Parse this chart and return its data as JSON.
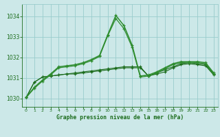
{
  "title": "Graphe pression niveau de la mer (hPa)",
  "background_color": "#cce8e8",
  "grid_color": "#99cccc",
  "line_color_dark": "#1a6b1a",
  "line_color_medium": "#2d8c2d",
  "xlim": [
    -0.5,
    23.5
  ],
  "ylim": [
    1029.6,
    1034.6
  ],
  "yticks": [
    1030,
    1031,
    1032,
    1033,
    1034
  ],
  "xticks": [
    0,
    1,
    2,
    3,
    4,
    5,
    6,
    7,
    8,
    9,
    10,
    11,
    12,
    13,
    14,
    15,
    16,
    17,
    18,
    19,
    20,
    21,
    22,
    23
  ],
  "series_sharp": [
    1030.05,
    1030.5,
    1030.85,
    1031.15,
    1031.5,
    1031.55,
    1031.6,
    1031.7,
    1031.85,
    1032.05,
    1033.05,
    1033.9,
    1033.4,
    1032.5,
    1031.05,
    1031.1,
    1031.25,
    1031.45,
    1031.65,
    1031.75,
    1031.75,
    1031.75,
    1031.7,
    1031.2
  ],
  "series_sharp2": [
    1030.05,
    1030.55,
    1030.9,
    1031.2,
    1031.55,
    1031.6,
    1031.65,
    1031.75,
    1031.9,
    1032.1,
    1033.1,
    1034.05,
    1033.55,
    1032.6,
    1031.1,
    1031.15,
    1031.3,
    1031.5,
    1031.7,
    1031.8,
    1031.8,
    1031.8,
    1031.75,
    1031.25
  ],
  "series_flat1": [
    1030.05,
    1030.8,
    1031.05,
    1031.1,
    1031.15,
    1031.2,
    1031.2,
    1031.25,
    1031.3,
    1031.35,
    1031.4,
    1031.45,
    1031.5,
    1031.5,
    1031.5,
    1031.1,
    1031.2,
    1031.3,
    1031.5,
    1031.65,
    1031.7,
    1031.65,
    1031.6,
    1031.15
  ],
  "series_flat2": [
    1030.05,
    1030.8,
    1031.05,
    1031.1,
    1031.15,
    1031.2,
    1031.25,
    1031.3,
    1031.35,
    1031.4,
    1031.45,
    1031.5,
    1031.55,
    1031.55,
    1031.55,
    1031.1,
    1031.25,
    1031.4,
    1031.55,
    1031.7,
    1031.75,
    1031.7,
    1031.65,
    1031.2
  ]
}
